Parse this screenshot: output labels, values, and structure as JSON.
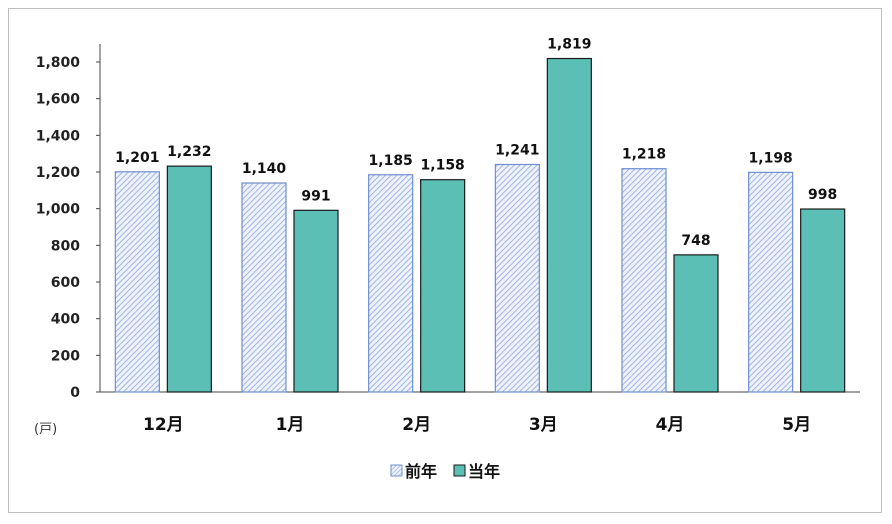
{
  "chart_data": {
    "type": "bar",
    "categories": [
      "12月",
      "1月",
      "2月",
      "3月",
      "4月",
      "5月"
    ],
    "series": [
      {
        "name": "前年",
        "values": [
          1201,
          1140,
          1185,
          1241,
          1218,
          1198
        ],
        "color": "#dbe3f5",
        "stroke": "#6f8fd0",
        "pattern": "hatch"
      },
      {
        "name": "当年",
        "values": [
          1232,
          991,
          1158,
          1819,
          748,
          998
        ],
        "color": "#5bbfb5",
        "stroke": "#1a1a1a",
        "pattern": "solid"
      }
    ],
    "data_labels": [
      [
        "1,201",
        "1,140",
        "1,185",
        "1,241",
        "1,218",
        "1,198"
      ],
      [
        "1,232",
        "991",
        "1,158",
        "1,819",
        "748",
        "998"
      ]
    ],
    "y_ticks": [
      "0",
      "200",
      "400",
      "600",
      "800",
      "1,000",
      "1,200",
      "1,400",
      "1,600",
      "1,800"
    ],
    "ylim": [
      0,
      1800
    ],
    "unit_label": "(戸)",
    "legend_position": "bottom-center",
    "grid": false
  }
}
